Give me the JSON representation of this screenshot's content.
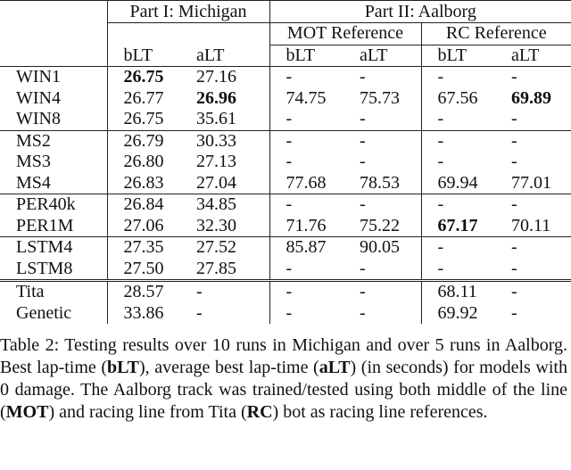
{
  "table": {
    "parts": [
      "Part I: Michigan",
      "Part II: Aalborg"
    ],
    "references": [
      "MOT Reference",
      "RC Reference"
    ],
    "columns": [
      "bLT",
      "aLT",
      "bLT",
      "aLT",
      "bLT",
      "aLT"
    ],
    "groups": [
      {
        "rows": [
          [
            "WIN1",
            {
              "text": "26.75",
              "bold": true
            },
            "27.16",
            "-",
            "-",
            "-",
            "-"
          ],
          [
            "WIN4",
            "26.77",
            {
              "text": "26.96",
              "bold": true
            },
            "74.75",
            "75.73",
            "67.56",
            {
              "text": "69.89",
              "bold": true
            }
          ],
          [
            "WIN8",
            "26.75",
            "35.61",
            "-",
            "-",
            "-",
            "-"
          ]
        ]
      },
      {
        "rows": [
          [
            "MS2",
            "26.79",
            "30.33",
            "-",
            "-",
            "-",
            "-"
          ],
          [
            "MS3",
            "26.80",
            "27.13",
            "-",
            "-",
            "-",
            "-"
          ],
          [
            "MS4",
            "26.83",
            "27.04",
            "77.68",
            "78.53",
            "69.94",
            "77.01"
          ]
        ]
      },
      {
        "rows": [
          [
            "PER40k",
            "26.84",
            "34.85",
            "-",
            "-",
            "-",
            "-"
          ],
          [
            "PER1M",
            "27.06",
            "32.30",
            "71.76",
            "75.22",
            {
              "text": "67.17",
              "bold": true
            },
            "70.11"
          ]
        ]
      },
      {
        "rows": [
          [
            "LSTM4",
            "27.35",
            "27.52",
            "85.87",
            "90.05",
            "-",
            "-"
          ],
          [
            "LSTM8",
            "27.50",
            "27.85",
            "-",
            "-",
            "-",
            "-"
          ]
        ]
      },
      {
        "rows": [
          [
            "Tita",
            "28.57",
            "-",
            "-",
            "-",
            "68.11",
            "-"
          ],
          [
            "Genetic",
            "33.86",
            "-",
            "-",
            "-",
            "69.92",
            "-"
          ]
        ]
      }
    ]
  },
  "caption": [
    {
      "text": "Table 2: Testing results over 10 runs in Michigan and over 5 runs in Aalborg. Best lap-time ("
    },
    {
      "text": "bLT",
      "bold": true
    },
    {
      "text": "), average best lap-time ("
    },
    {
      "text": "aLT",
      "bold": true
    },
    {
      "text": ") (in seconds) for models with 0 damage. The Aalborg track was trained/tested using both middle of the line ("
    },
    {
      "text": "MOT",
      "bold": true
    },
    {
      "text": ") and racing line from Tita ("
    },
    {
      "text": "RC",
      "bold": true
    },
    {
      "text": ") bot as racing line references."
    }
  ]
}
